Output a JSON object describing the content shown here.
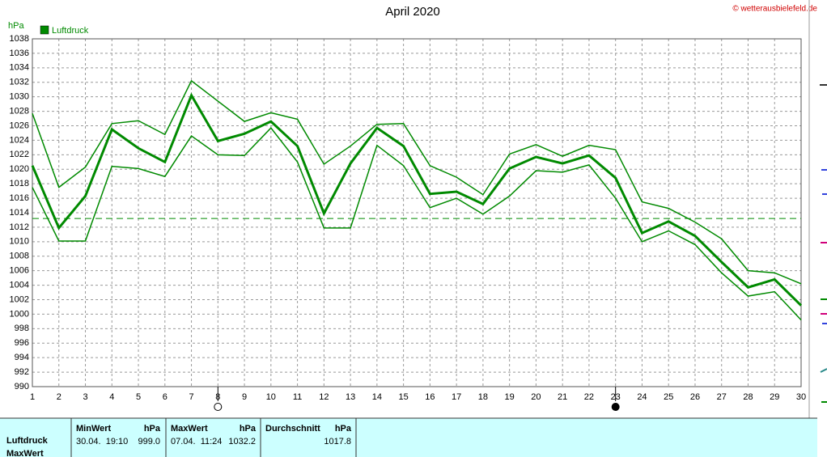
{
  "chart_data": {
    "type": "line",
    "title": "April 2020",
    "credit": "© wetterausbielefeld.de",
    "y_label": "hPa",
    "x": [
      1,
      2,
      3,
      4,
      5,
      6,
      7,
      8,
      9,
      10,
      11,
      12,
      13,
      14,
      15,
      16,
      17,
      18,
      19,
      20,
      21,
      22,
      23,
      24,
      25,
      26,
      27,
      28,
      29,
      30
    ],
    "xlim": [
      1,
      30
    ],
    "xticks": [
      1,
      2,
      3,
      4,
      5,
      6,
      7,
      8,
      9,
      10,
      11,
      12,
      13,
      14,
      15,
      16,
      17,
      18,
      19,
      20,
      21,
      22,
      23,
      24,
      25,
      26,
      27,
      28,
      29,
      30
    ],
    "ylim": [
      990,
      1038
    ],
    "yticks": [
      990,
      992,
      994,
      996,
      998,
      1000,
      1002,
      1004,
      1006,
      1008,
      1010,
      1012,
      1014,
      1016,
      1018,
      1020,
      1022,
      1024,
      1026,
      1028,
      1030,
      1032,
      1034,
      1036,
      1038
    ],
    "grid": true,
    "series": [
      {
        "name": "Luftdruck",
        "color": "#008a00",
        "width": 3,
        "values": [
          1020.5,
          1011.9,
          1016.3,
          1025.5,
          1022.9,
          1021.0,
          1030.2,
          1023.9,
          1024.9,
          1026.6,
          1023.2,
          1013.9,
          1020.8,
          1025.7,
          1023.2,
          1016.6,
          1016.9,
          1015.2,
          1020.1,
          1021.7,
          1020.8,
          1021.9,
          1018.8,
          1011.2,
          1012.8,
          1010.8,
          1007.2,
          1003.7,
          1004.8,
          1001.2
        ]
      },
      {
        "color": "#008a00",
        "width": 1.5,
        "values": [
          1027.7,
          1017.5,
          1020.3,
          1026.3,
          1026.7,
          1024.8,
          1032.2,
          1029.4,
          1026.6,
          1027.8,
          1026.9,
          1020.7,
          1023.2,
          1026.2,
          1026.3,
          1020.5,
          1018.9,
          1016.5,
          1022.1,
          1023.4,
          1021.8,
          1023.3,
          1022.7,
          1015.5,
          1014.6,
          1012.7,
          1010.4,
          1006.0,
          1005.7,
          1004.2
        ]
      },
      {
        "color": "#008a00",
        "width": 1.5,
        "values": [
          1017.5,
          1010.1,
          1010.1,
          1020.4,
          1020.1,
          1019.0,
          1024.6,
          1022.0,
          1021.9,
          1025.7,
          1021.0,
          1011.9,
          1011.9,
          1023.3,
          1020.5,
          1014.7,
          1016.0,
          1013.8,
          1016.3,
          1019.8,
          1019.6,
          1020.6,
          1016.0,
          1010.0,
          1011.5,
          1009.6,
          1005.7,
          1002.5,
          1003.1,
          999.2
        ]
      }
    ],
    "reference_line": 1013.2,
    "markers": [
      {
        "x": 8,
        "fill": "none"
      },
      {
        "x": 23,
        "fill": "#000000"
      }
    ]
  },
  "table": {
    "row_labels": [
      "Luftdruck",
      "MaxWert"
    ],
    "columns": [
      {
        "header": "MinWert",
        "unit": "hPa",
        "time": "30.04.  19:10",
        "value": "999.0"
      },
      {
        "header": "MaxWert",
        "unit": "hPa",
        "time": "07.04.  11:24",
        "value": "1032.2"
      },
      {
        "header": "Durchschnitt",
        "unit": "hPa",
        "value": "1017.8"
      }
    ]
  }
}
